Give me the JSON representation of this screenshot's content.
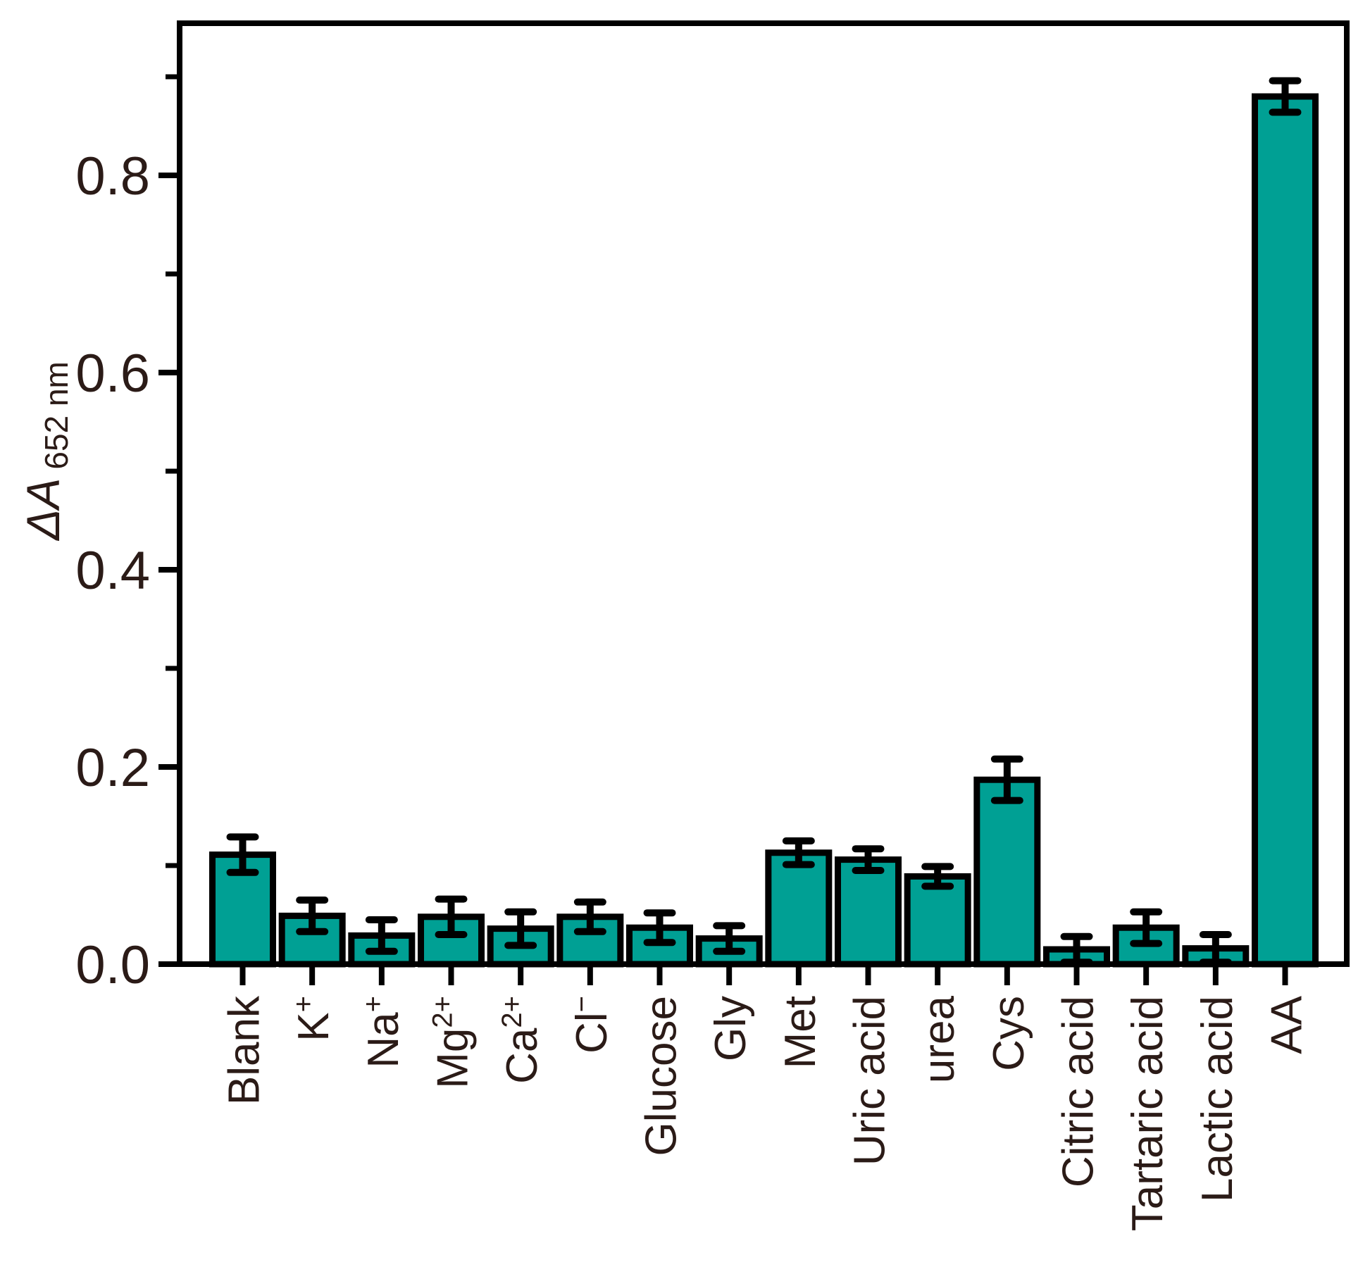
{
  "figure": {
    "background_color": "#FFFFFF",
    "axis_color": "#000000",
    "text_color": "#2B1B17"
  },
  "chart_data": {
    "type": "bar",
    "title": "",
    "xlabel": "",
    "ylabel_main": "ΔA",
    "ylabel_sub": "652 nm",
    "legend": "none",
    "grid": "off",
    "bar_color": "#00A094",
    "bar_edge_color": "#000000",
    "error_bar_color": "#000000",
    "categories": [
      {
        "label": "Blank",
        "parts": [
          [
            "Blank",
            "n"
          ]
        ]
      },
      {
        "label": "K+",
        "parts": [
          [
            "K",
            "n"
          ],
          [
            "+",
            "sup"
          ]
        ]
      },
      {
        "label": "Na+",
        "parts": [
          [
            "Na",
            "n"
          ],
          [
            "+",
            "sup"
          ]
        ]
      },
      {
        "label": "Mg2+",
        "parts": [
          [
            "Mg",
            "n"
          ],
          [
            "2+",
            "sup"
          ]
        ]
      },
      {
        "label": "Ca2+",
        "parts": [
          [
            "Ca",
            "n"
          ],
          [
            "2+",
            "sup"
          ]
        ]
      },
      {
        "label": "Cl-",
        "parts": [
          [
            "Cl",
            "n"
          ],
          [
            "−",
            "sup"
          ]
        ]
      },
      {
        "label": "Glucose",
        "parts": [
          [
            "Glucose",
            "n"
          ]
        ]
      },
      {
        "label": "Gly",
        "parts": [
          [
            "Gly",
            "n"
          ]
        ]
      },
      {
        "label": "Met",
        "parts": [
          [
            "Met",
            "n"
          ]
        ]
      },
      {
        "label": "Uric acid",
        "parts": [
          [
            "Uric acid",
            "n"
          ]
        ]
      },
      {
        "label": "urea",
        "parts": [
          [
            "urea",
            "n"
          ]
        ]
      },
      {
        "label": "Cys",
        "parts": [
          [
            "Cys",
            "n"
          ]
        ]
      },
      {
        "label": "Citric acid",
        "parts": [
          [
            "Citric acid",
            "n"
          ]
        ]
      },
      {
        "label": "Tartaric acid",
        "parts": [
          [
            "Tartaric acid",
            "n"
          ]
        ]
      },
      {
        "label": "Lactic acid",
        "parts": [
          [
            "Lactic acid",
            "n"
          ]
        ]
      },
      {
        "label": "AA",
        "parts": [
          [
            "AA",
            "n"
          ]
        ]
      }
    ],
    "values": [
      0.111,
      0.049,
      0.029,
      0.048,
      0.036,
      0.048,
      0.037,
      0.026,
      0.113,
      0.106,
      0.089,
      0.187,
      0.015,
      0.037,
      0.016,
      0.88
    ],
    "errors": [
      0.018,
      0.016,
      0.016,
      0.018,
      0.017,
      0.015,
      0.015,
      0.013,
      0.012,
      0.011,
      0.01,
      0.021,
      0.013,
      0.016,
      0.014,
      0.016
    ],
    "y_axis": {
      "min": 0,
      "max": 0.954,
      "major_tick_step": 0.2,
      "minor_tick_step": 0.1,
      "tick_labels": [
        "0.0",
        "0.2",
        "0.4",
        "0.6",
        "0.8"
      ]
    }
  }
}
